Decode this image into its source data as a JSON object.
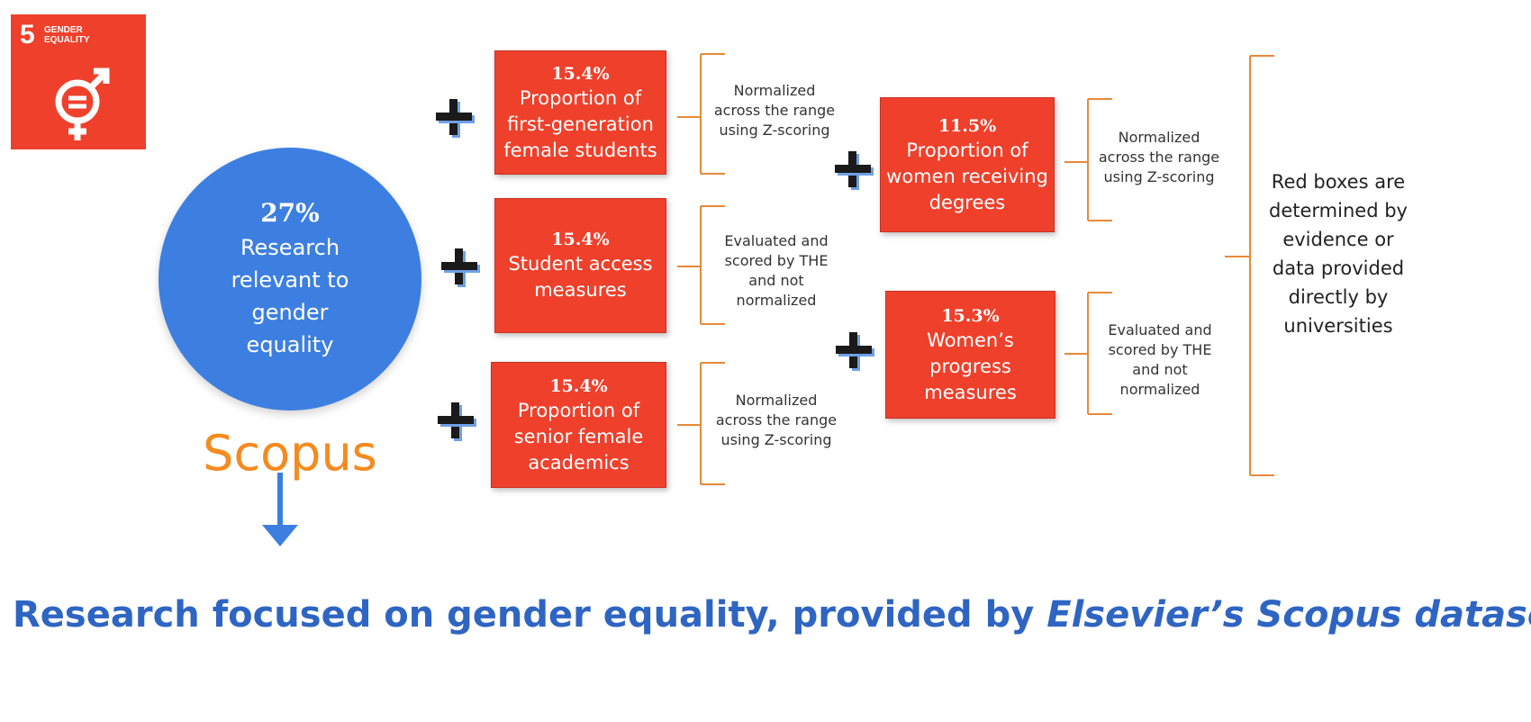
{
  "sdg": {
    "number": "5",
    "label": "GENDER\nEQUALITY",
    "color": "#EF402B"
  },
  "main": {
    "percent": "27%",
    "text": "Research\nrelevant to\ngender\nequality",
    "source": "Scopus",
    "color": "#3D7FE0"
  },
  "left_boxes": [
    {
      "percent": "15.4%",
      "text": "Proportion of\nfirst-generation\nfemale students",
      "note": "Normalized\nacross the range\nusing Z-scoring"
    },
    {
      "percent": "15.4%",
      "text": "Student access\nmeasures",
      "note": "Evaluated and\nscored by THE\nand not\nnormalized"
    },
    {
      "percent": "15.4%",
      "text": "Proportion of\nsenior female\nacademics",
      "note": "Normalized\nacross the range\nusing Z-scoring"
    }
  ],
  "right_boxes": [
    {
      "percent": "11.5%",
      "text": "Proportion of\nwomen receiving\ndegrees",
      "note": "Normalized\nacross the range\nusing Z-scoring"
    },
    {
      "percent": "15.3%",
      "text": "Women’s\nprogress\nmeasures",
      "note": "Evaluated and\nscored by THE\nand not\nnormalized"
    }
  ],
  "side_note": "Red boxes are\ndetermined by\nevidence or\ndata provided\ndirectly by\nuniversities",
  "footer": {
    "text": "Research focused on gender equality, provided by ",
    "emphasis": "Elsevier’s Scopus dataset"
  },
  "colors": {
    "red": "#EF402B",
    "orange": "#E8893A",
    "blue": "#3D7FE0",
    "footer_blue": "#2F65C2"
  }
}
